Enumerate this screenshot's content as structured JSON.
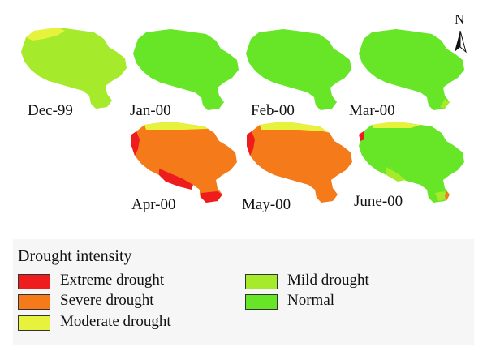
{
  "north_label": "N",
  "colors": {
    "extreme": "#ee1c1c",
    "severe": "#f57a1a",
    "moderate": "#e6f23c",
    "mild": "#a6ea2c",
    "normal": "#66e626"
  },
  "panels": [
    {
      "label": "Dec-99",
      "fill": "mild",
      "icon": "district-map-icon"
    },
    {
      "label": "Jan-00",
      "fill": "normal",
      "icon": "district-map-icon"
    },
    {
      "label": "Feb-00",
      "fill": "normal",
      "icon": "district-map-icon"
    },
    {
      "label": "Mar-00",
      "fill": "normal",
      "icon": "district-map-icon"
    },
    {
      "label": "Apr-00",
      "fill": "severe",
      "icon": "district-map-icon"
    },
    {
      "label": "May-00",
      "fill": "severe",
      "icon": "district-map-icon"
    },
    {
      "label": "June-00",
      "fill": "normal",
      "icon": "district-map-icon"
    }
  ],
  "legend": {
    "title": "Drought intensity",
    "items": [
      {
        "label": "Extreme drought",
        "color": "#ee1c1c"
      },
      {
        "label": "Severe drought",
        "color": "#f57a1a"
      },
      {
        "label": "Moderate drought",
        "color": "#e6f23c"
      },
      {
        "label": "Mild drought",
        "color": "#a6ea2c"
      },
      {
        "label": "Normal",
        "color": "#66e626"
      }
    ]
  }
}
